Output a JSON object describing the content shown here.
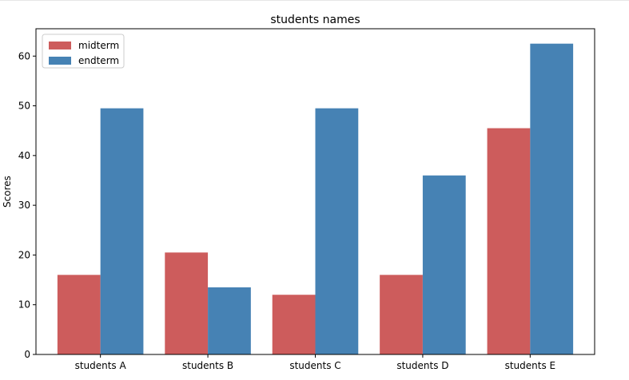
{
  "chart_data": {
    "type": "bar",
    "title": "students names",
    "xlabel": "",
    "ylabel": "Scores",
    "categories": [
      "students A",
      "students B",
      "students C",
      "students D",
      "students E"
    ],
    "series": [
      {
        "name": "midterm",
        "values": [
          16,
          20.5,
          12,
          16,
          45.5
        ],
        "color": "#cd5c5c"
      },
      {
        "name": "endterm",
        "values": [
          49.5,
          13.5,
          49.5,
          36,
          62.5
        ],
        "color": "#4682b4"
      }
    ],
    "ylim": [
      0,
      65.5
    ],
    "yticks": [
      0,
      10,
      20,
      30,
      40,
      50,
      60
    ],
    "grid": false,
    "legend": "top-left"
  }
}
